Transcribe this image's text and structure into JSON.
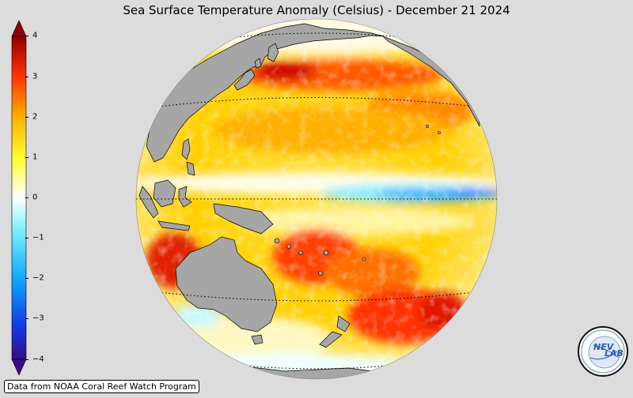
{
  "title": "Sea Surface Temperature Anomaly (Celsius) - December 21 2024",
  "colorbar": {
    "ticks": [
      "4",
      "3",
      "2",
      "1",
      "0",
      "−1",
      "−2",
      "−3",
      "−4"
    ],
    "range": [
      -4,
      4
    ],
    "colors": [
      "#3a0a8a",
      "#1038e0",
      "#10a8ff",
      "#7af0ff",
      "#ffffff",
      "#ffff30",
      "#ffb000",
      "#ff3000",
      "#900000"
    ]
  },
  "map": {
    "projection": "orthographic",
    "land_color": "#a6a6a6",
    "ocean_warm_color": "#ffd000",
    "cold_tongue_color": "#2aa8ff",
    "graticule_style": "dotted"
  },
  "credit": "Data from NOAA Coral Reef Watch Program",
  "logo": {
    "text": "NEV LAB"
  }
}
